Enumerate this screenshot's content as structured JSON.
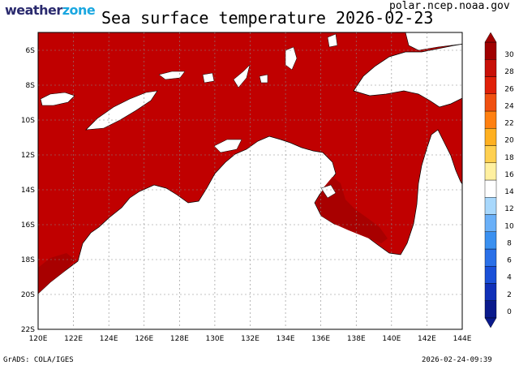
{
  "header": {
    "brand_a": "weather",
    "brand_b": "zone",
    "title": "Sea surface temperature 2026-02-23",
    "source": "polar.ncep.noaa.gov"
  },
  "footer": {
    "credit": "GrADS: COLA/IGES",
    "timestamp": "2026-02-24-09:39"
  },
  "map": {
    "lon_labels": [
      "120E",
      "122E",
      "124E",
      "126E",
      "128E",
      "130E",
      "132E",
      "134E",
      "136E",
      "138E",
      "140E",
      "142E",
      "144E"
    ],
    "lat_labels": [
      "6S",
      "8S",
      "10S",
      "12S",
      "14S",
      "16S",
      "18S",
      "20S",
      "22S"
    ],
    "sea_color": "#c00000",
    "warm_color": "#a00000",
    "land_color": "#ffffff"
  },
  "colorbar": {
    "labels": [
      "0",
      "2",
      "4",
      "6",
      "8",
      "10",
      "12",
      "14",
      "16",
      "18",
      "20",
      "22",
      "24",
      "26",
      "28",
      "30"
    ],
    "colors": [
      "#0a1a8c",
      "#1030b8",
      "#1a50d8",
      "#2a70e8",
      "#3a90f0",
      "#6ab0f8",
      "#a8d8fc",
      "#ffffff",
      "#fff0a0",
      "#ffd050",
      "#ffb020",
      "#ff8010",
      "#f05010",
      "#e02008",
      "#c81008",
      "#a00000"
    ]
  }
}
